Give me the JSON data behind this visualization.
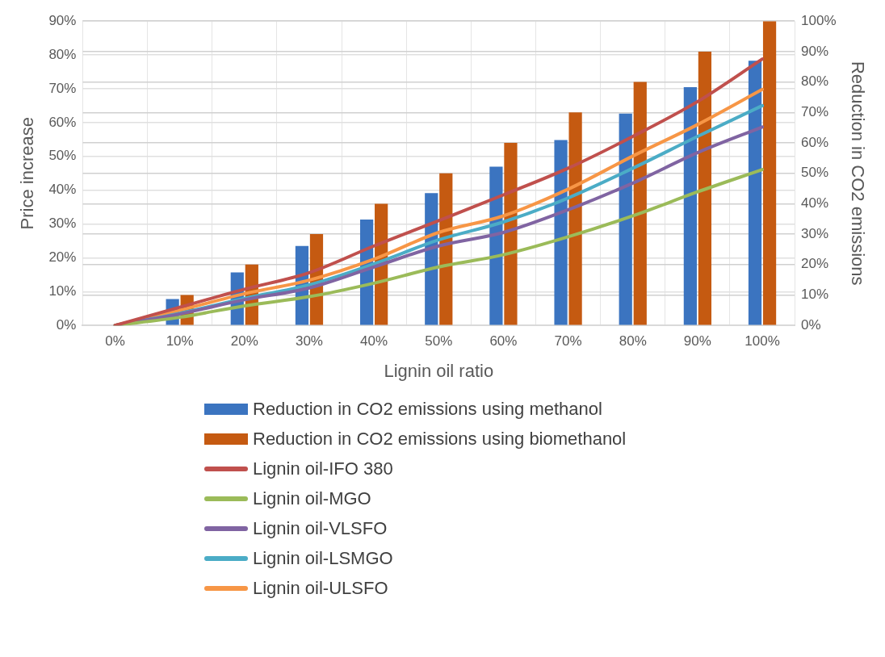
{
  "chart_data": {
    "type": "bar",
    "xlabel": "Lignin oil ratio",
    "ylabel": "Price increase",
    "y2label": "Reduction in CO2 emissions",
    "categories": [
      "0%",
      "10%",
      "20%",
      "30%",
      "40%",
      "50%",
      "60%",
      "70%",
      "80%",
      "90%",
      "100%"
    ],
    "series": [
      {
        "name": "Reduction in CO2 emissions using methanol",
        "axis": "y2",
        "color": "#3b74c0",
        "values": [
          0,
          8.7,
          17.4,
          26.1,
          34.8,
          43.5,
          52.2,
          60.9,
          69.6,
          78.3,
          87
        ]
      },
      {
        "name": "Reduction in CO2 emissions using biomethanol",
        "axis": "y2",
        "color": "#c55a11",
        "values": [
          0,
          10,
          20,
          30,
          40,
          50,
          60,
          70,
          80,
          90,
          100
        ]
      },
      {
        "name": "Lignin oil-IFO 380",
        "type": "line",
        "color": "#c0504d",
        "values": [
          0,
          5.4,
          10.7,
          15.6,
          23.5,
          31,
          38.6,
          46.5,
          55.9,
          66.2,
          78.8
        ]
      },
      {
        "name": "Lignin oil-MGO",
        "type": "line",
        "color": "#9bbb59",
        "values": [
          0,
          2.4,
          5.8,
          8.5,
          12.5,
          17.3,
          20.9,
          26.2,
          32.4,
          39.5,
          46.1
        ]
      },
      {
        "name": "Lignin oil-VLSFO",
        "type": "line",
        "color": "#8064a2",
        "values": [
          0,
          3.4,
          7.6,
          11.1,
          17.3,
          23.5,
          27.5,
          34.2,
          42.1,
          51.1,
          58.7
        ]
      },
      {
        "name": "Lignin oil-LSMGO",
        "type": "line",
        "color": "#4bacc6",
        "values": [
          0,
          3.6,
          8,
          12,
          18.2,
          25.3,
          30.6,
          37.7,
          46.5,
          55.9,
          65
        ]
      },
      {
        "name": "Lignin oil-ULSFO",
        "type": "line",
        "color": "#f79646",
        "values": [
          0,
          4.5,
          9.4,
          13.4,
          19.6,
          27.5,
          32.4,
          40.3,
          50.1,
          59.4,
          69.8
        ]
      }
    ],
    "ylim": [
      0,
      90
    ],
    "yticks": [
      {
        "value": 0,
        "label": "0%"
      },
      {
        "value": 10,
        "label": "10%"
      },
      {
        "value": 20,
        "label": "20%"
      },
      {
        "value": 30,
        "label": "30%"
      },
      {
        "value": 40,
        "label": "40%"
      },
      {
        "value": 50,
        "label": "50%"
      },
      {
        "value": 60,
        "label": "60%"
      },
      {
        "value": 70,
        "label": "70%"
      },
      {
        "value": 80,
        "label": "80%"
      },
      {
        "value": 90,
        "label": "90%"
      }
    ],
    "y2lim": [
      0,
      100
    ],
    "y2ticks": [
      {
        "value": 0,
        "label": "0%"
      },
      {
        "value": 10,
        "label": "10%"
      },
      {
        "value": 20,
        "label": "20%"
      },
      {
        "value": 30,
        "label": "30%"
      },
      {
        "value": 40,
        "label": "40%"
      },
      {
        "value": 50,
        "label": "50%"
      },
      {
        "value": 60,
        "label": "60%"
      },
      {
        "value": 70,
        "label": "70%"
      },
      {
        "value": 80,
        "label": "80%"
      },
      {
        "value": 90,
        "label": "90%"
      },
      {
        "value": 100,
        "label": "100%"
      }
    ],
    "grid": true,
    "legend": "bottom",
    "marker": "none",
    "line_style": "solid"
  }
}
